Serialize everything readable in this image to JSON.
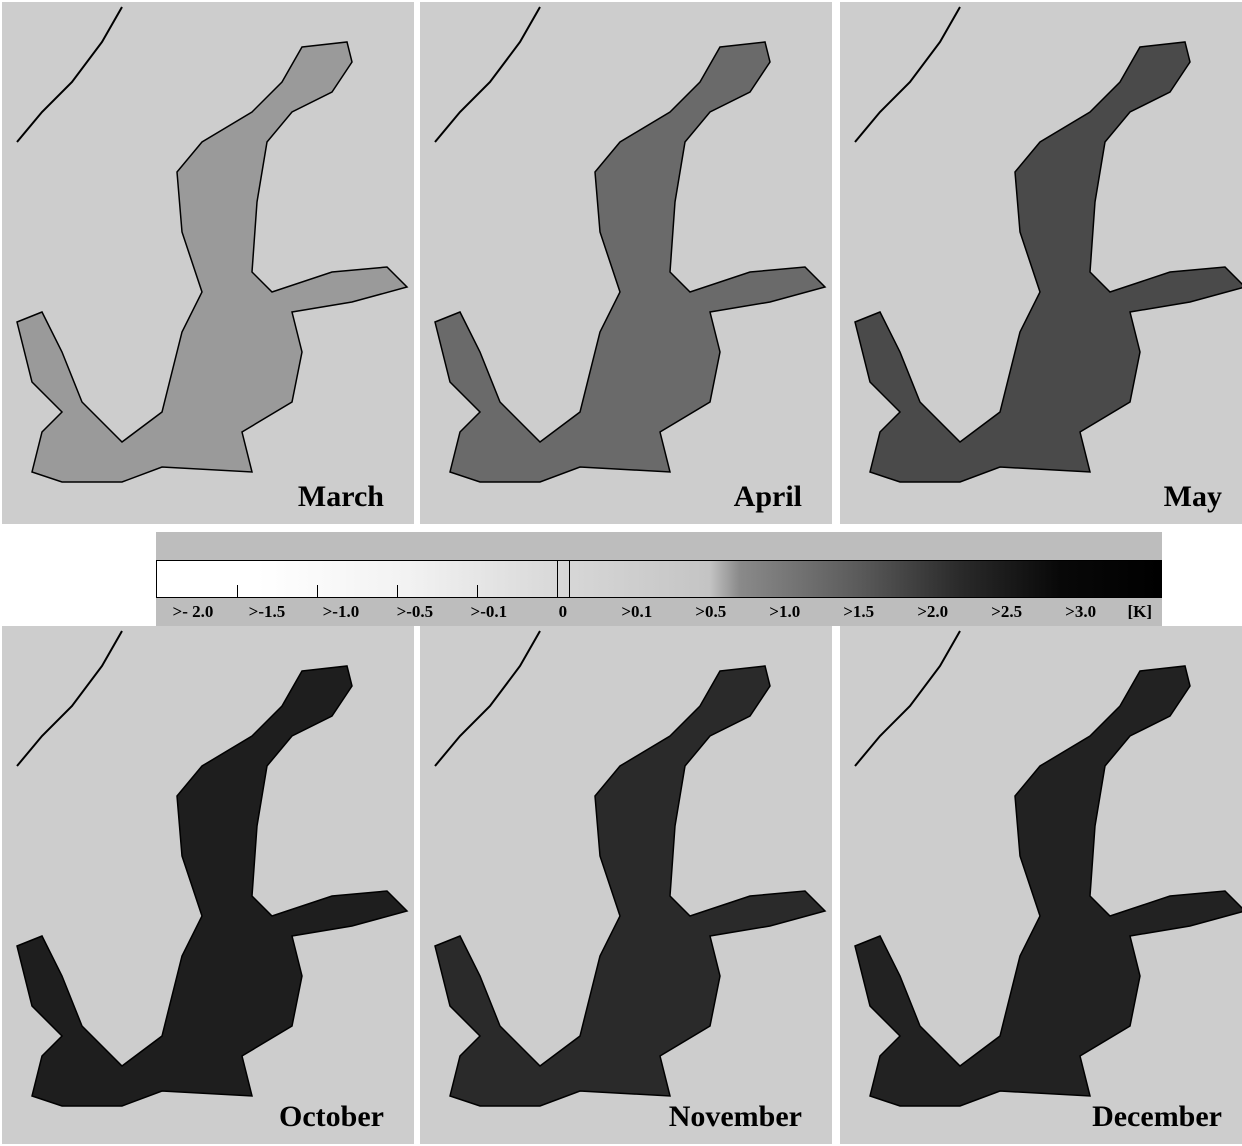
{
  "panels": [
    {
      "label": "March"
    },
    {
      "label": "April"
    },
    {
      "label": "May"
    },
    {
      "label": "October"
    },
    {
      "label": "November"
    },
    {
      "label": "December"
    }
  ],
  "legend": {
    "labels": [
      ">- 2.0",
      ">-1.5",
      ">-1.0",
      ">-0.5",
      ">-0.1",
      "0",
      ">0.1",
      ">0.5",
      ">1.0",
      ">1.5",
      ">2.0",
      ">2.5",
      ">3.0"
    ],
    "unit": "[K]"
  }
}
